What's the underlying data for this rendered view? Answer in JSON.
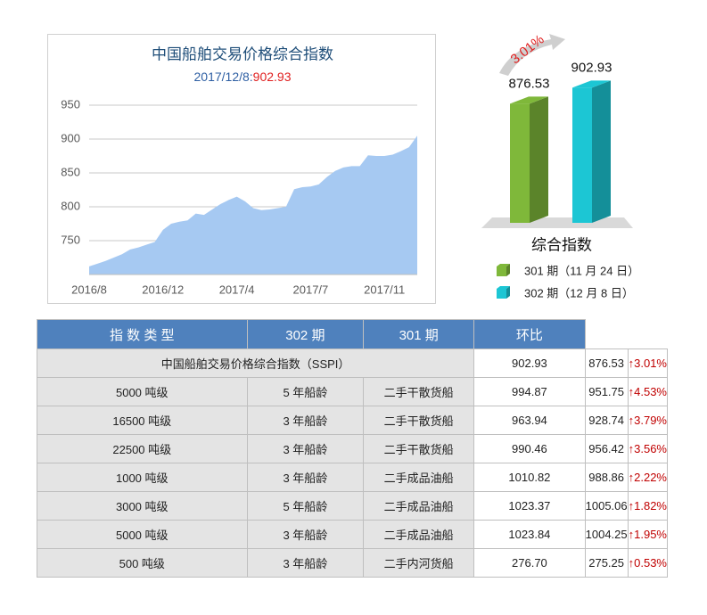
{
  "chart_data": [
    {
      "type": "area",
      "title": "中国船舶交易价格综合指数",
      "subtitle_date": "2017/12/8:",
      "subtitle_value": "902.93",
      "categories": [
        "2016/8",
        null,
        null,
        null,
        null,
        null,
        null,
        null,
        null,
        "2016/12",
        null,
        null,
        null,
        null,
        null,
        null,
        null,
        null,
        "2017/4",
        null,
        null,
        null,
        null,
        null,
        null,
        null,
        null,
        "2017/7",
        null,
        null,
        null,
        null,
        null,
        null,
        null,
        null,
        "2017/11",
        null,
        null,
        null,
        null
      ],
      "values": [
        712,
        716,
        720,
        725,
        730,
        737,
        740,
        744,
        748,
        766,
        775,
        778,
        780,
        790,
        788,
        796,
        804,
        810,
        815,
        808,
        798,
        795,
        796,
        798,
        800,
        826,
        829,
        830,
        833,
        844,
        853,
        858,
        860,
        860,
        876,
        875,
        875,
        877,
        882,
        888,
        905
      ],
      "color": "#a6c9f2",
      "ylim": [
        700,
        950
      ],
      "yticks": [
        750,
        800,
        850,
        900,
        950
      ],
      "grid": true
    },
    {
      "type": "bar3d",
      "xlabel": "综合指数",
      "annotation": "3.01%",
      "series": [
        {
          "name": "301 期（11 月 24 日）",
          "color": "#7fb83a",
          "values": [
            876.53
          ]
        },
        {
          "name": "302 期（12 月 8 日）",
          "color": "#1cc6d4",
          "values": [
            902.93
          ]
        }
      ],
      "ylim": [
        680,
        920
      ]
    }
  ],
  "table": {
    "header": [
      "指 数 类 型",
      "302 期",
      "301 期",
      "环比"
    ],
    "rows": [
      [
        "中国船舶交易价格综合指数（SSPI）",
        "902.93",
        "876.53",
        "3.01%"
      ],
      [
        "5000 吨级",
        "5 年船龄",
        "二手干散货船",
        "994.87",
        "951.75",
        "4.53%"
      ],
      [
        "16500 吨级",
        "3 年船龄",
        "二手干散货船",
        "963.94",
        "928.74",
        "3.79%"
      ],
      [
        "22500 吨级",
        "3 年船龄",
        "二手干散货船",
        "990.46",
        "956.42",
        "3.56%"
      ],
      [
        "1000 吨级",
        "3 年船龄",
        "二手成品油船",
        "1010.82",
        "988.86",
        "2.22%"
      ],
      [
        "3000 吨级",
        "5 年船龄",
        "二手成品油船",
        "1023.37",
        "1005.06",
        "1.82%"
      ],
      [
        "5000 吨级",
        "3 年船龄",
        "二手成品油船",
        "1023.84",
        "1004.25",
        "1.95%"
      ],
      [
        "500 吨级",
        "3 年船龄",
        "二手内河货船",
        "276.70",
        "275.25",
        "0.53%"
      ]
    ]
  }
}
